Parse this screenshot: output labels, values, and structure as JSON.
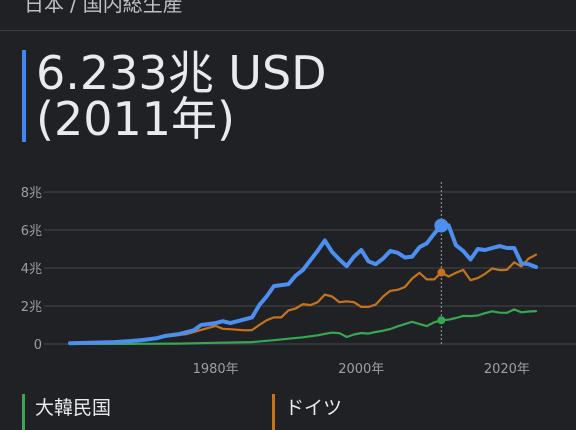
{
  "breadcrumb": {
    "country": "日本",
    "separator": "/",
    "metric": "国内総生産"
  },
  "headline": {
    "value": "6.233兆 USD",
    "year": "(2011年)"
  },
  "colors": {
    "japan": "#4d8ff0",
    "germany": "#c5731f",
    "korea": "#34a853",
    "grid": "#3c4043",
    "axis_text": "#9aa0a6"
  },
  "legend": [
    {
      "label": "大韓民国",
      "color": "#34a853"
    },
    {
      "label": "ドイツ",
      "color": "#c5731f"
    }
  ],
  "chart_data": {
    "type": "line",
    "title": "",
    "xlabel": "",
    "ylabel": "",
    "xlim": [
      1960,
      2024
    ],
    "ylim": [
      0,
      8
    ],
    "y_ticks": [
      {
        "v": 0,
        "label": "0"
      },
      {
        "v": 2,
        "label": "2兆"
      },
      {
        "v": 4,
        "label": "4兆"
      },
      {
        "v": 6,
        "label": "6兆"
      },
      {
        "v": 8,
        "label": "8兆"
      }
    ],
    "x_ticks": [
      {
        "v": 1980,
        "label": "1980年"
      },
      {
        "v": 2000,
        "label": "2000年"
      },
      {
        "v": 2020,
        "label": "2020年"
      }
    ],
    "highlight_year": 2011,
    "series": [
      {
        "name": "日本",
        "color": "#4d8ff0",
        "points": [
          [
            1960,
            0.04
          ],
          [
            1962,
            0.06
          ],
          [
            1964,
            0.08
          ],
          [
            1966,
            0.1
          ],
          [
            1968,
            0.15
          ],
          [
            1970,
            0.21
          ],
          [
            1972,
            0.31
          ],
          [
            1973,
            0.42
          ],
          [
            1975,
            0.52
          ],
          [
            1977,
            0.72
          ],
          [
            1978,
            1.0
          ],
          [
            1980,
            1.1
          ],
          [
            1981,
            1.2
          ],
          [
            1982,
            1.1
          ],
          [
            1983,
            1.2
          ],
          [
            1984,
            1.3
          ],
          [
            1985,
            1.4
          ],
          [
            1986,
            2.05
          ],
          [
            1987,
            2.5
          ],
          [
            1988,
            3.05
          ],
          [
            1989,
            3.1
          ],
          [
            1990,
            3.15
          ],
          [
            1991,
            3.6
          ],
          [
            1992,
            3.9
          ],
          [
            1993,
            4.4
          ],
          [
            1994,
            4.9
          ],
          [
            1995,
            5.45
          ],
          [
            1996,
            4.85
          ],
          [
            1997,
            4.45
          ],
          [
            1998,
            4.1
          ],
          [
            1999,
            4.6
          ],
          [
            2000,
            4.95
          ],
          [
            2001,
            4.35
          ],
          [
            2002,
            4.2
          ],
          [
            2003,
            4.5
          ],
          [
            2004,
            4.9
          ],
          [
            2005,
            4.8
          ],
          [
            2006,
            4.55
          ],
          [
            2007,
            4.6
          ],
          [
            2008,
            5.1
          ],
          [
            2009,
            5.3
          ],
          [
            2010,
            5.8
          ],
          [
            2011,
            6.233
          ],
          [
            2012,
            6.25
          ],
          [
            2013,
            5.2
          ],
          [
            2014,
            4.9
          ],
          [
            2015,
            4.45
          ],
          [
            2016,
            5.0
          ],
          [
            2017,
            4.95
          ],
          [
            2018,
            5.05
          ],
          [
            2019,
            5.15
          ],
          [
            2020,
            5.05
          ],
          [
            2021,
            5.05
          ],
          [
            2022,
            4.25
          ],
          [
            2023,
            4.2
          ],
          [
            2024,
            4.05
          ]
        ]
      },
      {
        "name": "ドイツ",
        "color": "#c5731f",
        "points": [
          [
            1970,
            0.21
          ],
          [
            1972,
            0.3
          ],
          [
            1974,
            0.44
          ],
          [
            1976,
            0.52
          ],
          [
            1978,
            0.74
          ],
          [
            1980,
            0.95
          ],
          [
            1981,
            0.8
          ],
          [
            1982,
            0.78
          ],
          [
            1984,
            0.72
          ],
          [
            1985,
            0.73
          ],
          [
            1986,
            1.0
          ],
          [
            1987,
            1.25
          ],
          [
            1988,
            1.4
          ],
          [
            1989,
            1.4
          ],
          [
            1990,
            1.77
          ],
          [
            1991,
            1.87
          ],
          [
            1992,
            2.1
          ],
          [
            1993,
            2.05
          ],
          [
            1994,
            2.2
          ],
          [
            1995,
            2.6
          ],
          [
            1996,
            2.5
          ],
          [
            1997,
            2.2
          ],
          [
            1998,
            2.24
          ],
          [
            1999,
            2.2
          ],
          [
            2000,
            1.95
          ],
          [
            2001,
            1.95
          ],
          [
            2002,
            2.08
          ],
          [
            2003,
            2.5
          ],
          [
            2004,
            2.8
          ],
          [
            2005,
            2.85
          ],
          [
            2006,
            3.0
          ],
          [
            2007,
            3.45
          ],
          [
            2008,
            3.75
          ],
          [
            2009,
            3.4
          ],
          [
            2010,
            3.4
          ],
          [
            2011,
            3.76
          ],
          [
            2012,
            3.55
          ],
          [
            2013,
            3.75
          ],
          [
            2014,
            3.9
          ],
          [
            2015,
            3.36
          ],
          [
            2016,
            3.47
          ],
          [
            2017,
            3.69
          ],
          [
            2018,
            3.98
          ],
          [
            2019,
            3.89
          ],
          [
            2020,
            3.9
          ],
          [
            2021,
            4.3
          ],
          [
            2022,
            4.08
          ],
          [
            2023,
            4.5
          ],
          [
            2024,
            4.7
          ]
        ]
      },
      {
        "name": "大韓民国",
        "color": "#34a853",
        "points": [
          [
            1960,
            0.004
          ],
          [
            1965,
            0.003
          ],
          [
            1970,
            0.009
          ],
          [
            1975,
            0.02
          ],
          [
            1980,
            0.065
          ],
          [
            1985,
            0.1
          ],
          [
            1988,
            0.2
          ],
          [
            1990,
            0.28
          ],
          [
            1992,
            0.35
          ],
          [
            1994,
            0.46
          ],
          [
            1996,
            0.6
          ],
          [
            1997,
            0.57
          ],
          [
            1998,
            0.37
          ],
          [
            1999,
            0.5
          ],
          [
            2000,
            0.58
          ],
          [
            2001,
            0.55
          ],
          [
            2002,
            0.63
          ],
          [
            2003,
            0.7
          ],
          [
            2004,
            0.79
          ],
          [
            2005,
            0.93
          ],
          [
            2006,
            1.05
          ],
          [
            2007,
            1.17
          ],
          [
            2008,
            1.05
          ],
          [
            2009,
            0.94
          ],
          [
            2010,
            1.14
          ],
          [
            2011,
            1.25
          ],
          [
            2012,
            1.28
          ],
          [
            2013,
            1.37
          ],
          [
            2014,
            1.48
          ],
          [
            2015,
            1.47
          ],
          [
            2016,
            1.5
          ],
          [
            2017,
            1.62
          ],
          [
            2018,
            1.72
          ],
          [
            2019,
            1.65
          ],
          [
            2020,
            1.64
          ],
          [
            2021,
            1.82
          ],
          [
            2022,
            1.67
          ],
          [
            2023,
            1.71
          ],
          [
            2024,
            1.73
          ]
        ]
      }
    ]
  }
}
